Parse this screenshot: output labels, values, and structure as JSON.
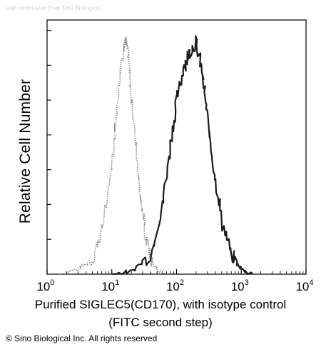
{
  "watermark": "with permission from Sino Biological",
  "copyright": "© Sino Biological Inc. All rights reserved",
  "chart_data": {
    "type": "histogram",
    "title": "",
    "ylabel": "Relative Cell Number",
    "xlabel": "Purified  SIGLEC5(CD170), with isotype control",
    "xlabel_line2": "(FITC second step)",
    "x_scale": "log",
    "xlim": [
      1,
      10000
    ],
    "ylim": [
      0,
      1
    ],
    "x_ticks": [
      {
        "base": "10",
        "exp": "0",
        "value": 1
      },
      {
        "base": "10",
        "exp": "1",
        "value": 10
      },
      {
        "base": "10",
        "exp": "2",
        "value": 100
      },
      {
        "base": "10",
        "exp": "3",
        "value": 1000
      },
      {
        "base": "10",
        "exp": "4",
        "value": 10000
      }
    ],
    "series": [
      {
        "color": "#8a8a8a",
        "style": "dotted",
        "points": [
          [
            1.5,
            0.0
          ],
          [
            3,
            0.02
          ],
          [
            5,
            0.06
          ],
          [
            7,
            0.18
          ],
          [
            9,
            0.36
          ],
          [
            11,
            0.58
          ],
          [
            13,
            0.78
          ],
          [
            15,
            0.93
          ],
          [
            16,
            0.98
          ],
          [
            18,
            0.9
          ],
          [
            20,
            0.74
          ],
          [
            24,
            0.52
          ],
          [
            28,
            0.32
          ],
          [
            33,
            0.16
          ],
          [
            40,
            0.06
          ],
          [
            50,
            0.02
          ],
          [
            70,
            0.0
          ]
        ]
      },
      {
        "color": "#1a1a1a",
        "style": "solid",
        "points": [
          [
            10,
            0.0
          ],
          [
            20,
            0.01
          ],
          [
            40,
            0.08
          ],
          [
            60,
            0.28
          ],
          [
            80,
            0.52
          ],
          [
            100,
            0.72
          ],
          [
            130,
            0.86
          ],
          [
            160,
            0.92
          ],
          [
            200,
            0.96
          ],
          [
            250,
            0.84
          ],
          [
            300,
            0.64
          ],
          [
            400,
            0.4
          ],
          [
            500,
            0.22
          ],
          [
            700,
            0.08
          ],
          [
            1000,
            0.02
          ],
          [
            1500,
            0.0
          ]
        ]
      }
    ]
  }
}
